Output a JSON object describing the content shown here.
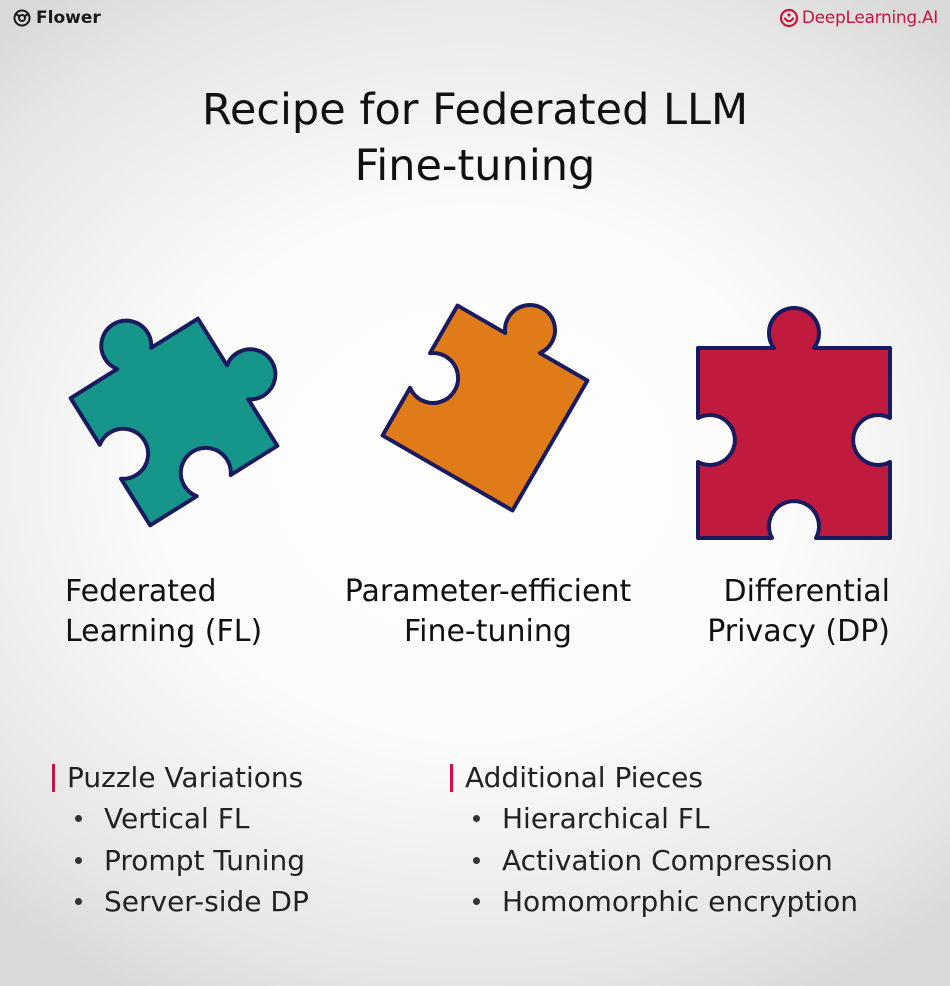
{
  "header": {
    "left_brand": "Flower",
    "right_brand": "DeepLearning.AI"
  },
  "title": {
    "line1": "Recipe for Federated LLM",
    "line2": "Fine-tuning"
  },
  "pieces": [
    {
      "line1": "Federated",
      "line2": "Learning (FL)",
      "color": "#16958a"
    },
    {
      "line1": "Parameter-efficient",
      "line2": "Fine-tuning",
      "color": "#e07b1a"
    },
    {
      "line1": "Differential",
      "line2": "Privacy (DP)",
      "color": "#c01a3e"
    }
  ],
  "outline_color": "#1a1a5e",
  "accent_color": "#c8143c",
  "lists": {
    "left": {
      "heading": "Puzzle Variations",
      "items": [
        "Vertical FL",
        "Prompt Tuning",
        "Server-side DP"
      ]
    },
    "right": {
      "heading": "Additional Pieces",
      "items": [
        "Hierarchical FL",
        "Activation Compression",
        "Homomorphic encryption"
      ]
    }
  }
}
